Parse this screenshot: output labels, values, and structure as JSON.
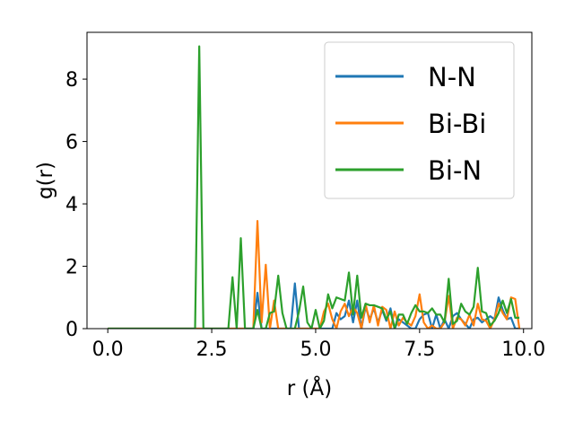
{
  "chart_data": {
    "type": "line",
    "xlabel": "r (Å)",
    "ylabel": "g(r)",
    "xlim": [
      -0.5,
      10.2
    ],
    "ylim": [
      0,
      9.5
    ],
    "xticks": [
      0.0,
      2.5,
      5.0,
      7.5,
      10.0
    ],
    "xtick_labels": [
      "0.0",
      "2.5",
      "5.0",
      "7.5",
      "10.0"
    ],
    "yticks": [
      0,
      2,
      4,
      6,
      8
    ],
    "ytick_labels": [
      "0",
      "2",
      "4",
      "6",
      "8"
    ],
    "grid": false,
    "legend_position": "top-right",
    "series": [
      {
        "name": "N-N",
        "color": "#1f77b4",
        "x": [
          0.0,
          3.4,
          3.5,
          3.6,
          3.7,
          3.8,
          4.4,
          4.5,
          4.6,
          5.1,
          5.2,
          5.3,
          5.4,
          5.5,
          5.6,
          5.7,
          5.8,
          5.9,
          6.0,
          6.1,
          6.2,
          6.3,
          6.4,
          6.5,
          6.6,
          6.7,
          6.8,
          6.9,
          7.0,
          7.1,
          7.2,
          7.3,
          7.4,
          7.5,
          7.6,
          7.7,
          7.8,
          7.9,
          8.0,
          8.1,
          8.2,
          8.3,
          8.4,
          8.5,
          8.6,
          8.7,
          8.8,
          8.9,
          9.0,
          9.1,
          9.2,
          9.3,
          9.4,
          9.5,
          9.6,
          9.7,
          9.8,
          9.9
        ],
        "y": [
          0,
          0,
          0,
          1.15,
          0,
          0,
          0,
          1.45,
          0,
          0,
          0,
          0,
          0,
          0.5,
          0.3,
          0.4,
          0.9,
          0.2,
          0.9,
          0,
          0.7,
          0.3,
          0.65,
          0.2,
          0.6,
          0.25,
          0.65,
          0,
          0.3,
          0.2,
          0.1,
          0,
          0,
          0.3,
          0.45,
          0.5,
          0,
          0.45,
          0,
          0.3,
          0,
          0.4,
          0.5,
          0.3,
          0.15,
          0,
          0.3,
          0.35,
          0.2,
          0.3,
          0.4,
          0.3,
          1.0,
          0.6,
          0.3,
          0.35,
          0,
          0
        ]
      },
      {
        "name": "Bi-Bi",
        "color": "#ff7f0e",
        "x": [
          0.0,
          3.4,
          3.5,
          3.6,
          3.7,
          3.8,
          3.9,
          4.0,
          4.1,
          4.2,
          5.0,
          5.1,
          5.2,
          5.3,
          5.4,
          5.5,
          5.6,
          5.7,
          5.8,
          5.9,
          6.0,
          6.1,
          6.2,
          6.3,
          6.4,
          6.5,
          6.6,
          6.7,
          6.8,
          6.9,
          7.0,
          7.1,
          7.2,
          7.3,
          7.4,
          7.5,
          7.6,
          7.7,
          7.8,
          7.9,
          8.0,
          8.1,
          8.2,
          8.3,
          8.4,
          8.5,
          8.6,
          8.7,
          8.8,
          8.9,
          9.0,
          9.1,
          9.2,
          9.3,
          9.4,
          9.5,
          9.6,
          9.7,
          9.8,
          9.9
        ],
        "y": [
          0,
          0,
          0,
          3.45,
          0.2,
          2.05,
          0,
          0.9,
          0,
          0,
          0,
          0,
          0.55,
          0.8,
          0.3,
          0,
          0.55,
          0.8,
          0.4,
          0.7,
          0.5,
          0,
          0.8,
          0.2,
          0.75,
          0.1,
          0.7,
          0.6,
          0,
          0.55,
          0.1,
          0.35,
          0.2,
          0.1,
          0.4,
          1.1,
          0.2,
          0,
          0.1,
          0,
          0,
          0.2,
          1.05,
          0,
          0.35,
          0.3,
          0.1,
          0.45,
          0.1,
          0.8,
          0.3,
          0.25,
          0,
          0.3,
          0.8,
          0.5,
          0.3,
          1.0,
          0.95,
          0
        ]
      },
      {
        "name": "Bi-N",
        "color": "#2ca02c",
        "x": [
          0.0,
          2.1,
          2.2,
          2.3,
          2.4,
          2.9,
          3.0,
          3.1,
          3.2,
          3.3,
          3.4,
          3.5,
          3.6,
          3.7,
          3.8,
          3.9,
          4.0,
          4.1,
          4.2,
          4.3,
          4.4,
          4.5,
          4.6,
          4.7,
          4.8,
          4.9,
          5.0,
          5.1,
          5.2,
          5.3,
          5.4,
          5.5,
          5.6,
          5.7,
          5.8,
          5.9,
          6.0,
          6.1,
          6.2,
          6.3,
          6.4,
          6.5,
          6.6,
          6.7,
          6.8,
          6.9,
          7.0,
          7.1,
          7.2,
          7.3,
          7.4,
          7.5,
          7.6,
          7.7,
          7.8,
          7.9,
          8.0,
          8.1,
          8.2,
          8.3,
          8.4,
          8.5,
          8.6,
          8.7,
          8.8,
          8.9,
          9.0,
          9.1,
          9.2,
          9.3,
          9.4,
          9.5,
          9.6,
          9.7,
          9.8,
          9.9
        ],
        "y": [
          0,
          0,
          9.05,
          0,
          0,
          0,
          1.65,
          0,
          2.9,
          0,
          0,
          0,
          0.6,
          0,
          0,
          0.5,
          0.55,
          1.7,
          0.5,
          0,
          0,
          0,
          0.55,
          1.35,
          0.2,
          0,
          0.6,
          0,
          0.25,
          1.1,
          0.65,
          1.0,
          0.95,
          0.9,
          1.8,
          0.45,
          1.7,
          0.35,
          0.8,
          0.75,
          0.75,
          0.7,
          0.65,
          0.3,
          0.55,
          0,
          0.45,
          0.45,
          0.15,
          0.5,
          0.75,
          0.55,
          0.55,
          0.5,
          0.65,
          0.45,
          0.45,
          0.2,
          1.6,
          0.15,
          0.25,
          0.8,
          0.55,
          0.45,
          0.7,
          1.95,
          0.55,
          0.5,
          0.1,
          0.25,
          0.5,
          0.9,
          0.5,
          0.95,
          0.35,
          0.35
        ]
      }
    ]
  }
}
